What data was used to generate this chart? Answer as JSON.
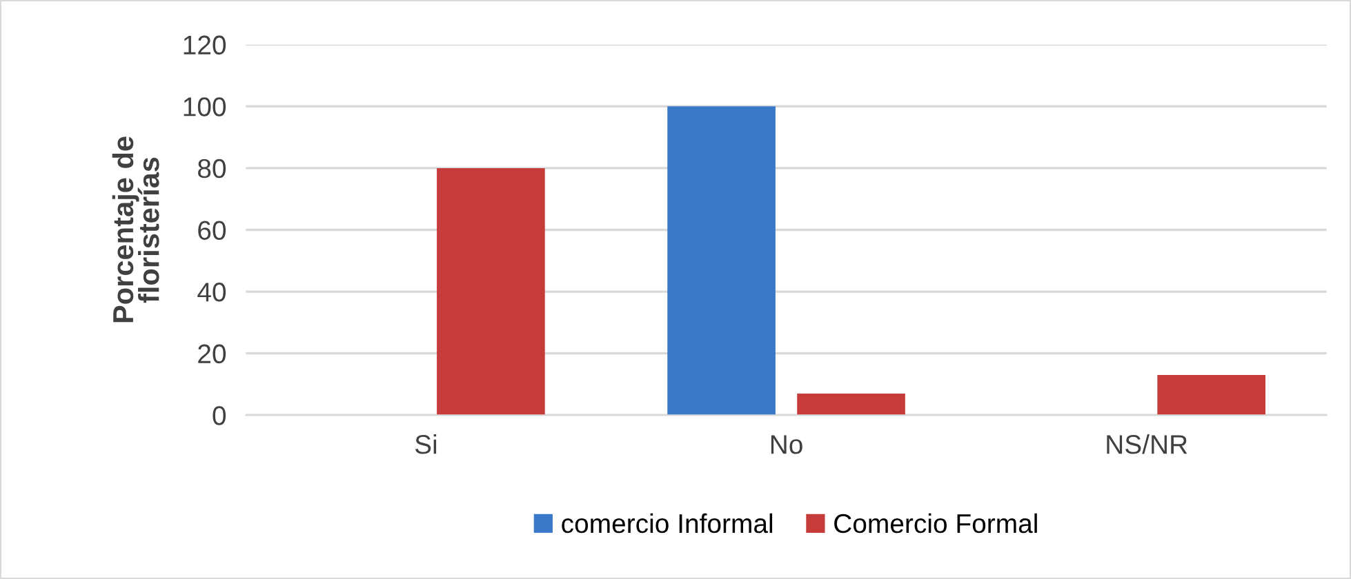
{
  "chart_data": {
    "type": "bar",
    "ylabel": "Porcentaje de\nfloristerías",
    "categories": [
      "Si",
      "No",
      "NS/NR"
    ],
    "series": [
      {
        "name": "comercio Informal",
        "color": "#3a78c8",
        "values": [
          0,
          100,
          0
        ]
      },
      {
        "name": "Comercio Formal",
        "color": "#c63c3a",
        "values": [
          80,
          7,
          13
        ]
      }
    ],
    "ylim": [
      0,
      120
    ],
    "yticks": [
      0,
      20,
      40,
      60,
      80,
      100,
      120
    ],
    "grid": "y",
    "legend": "bottom"
  }
}
